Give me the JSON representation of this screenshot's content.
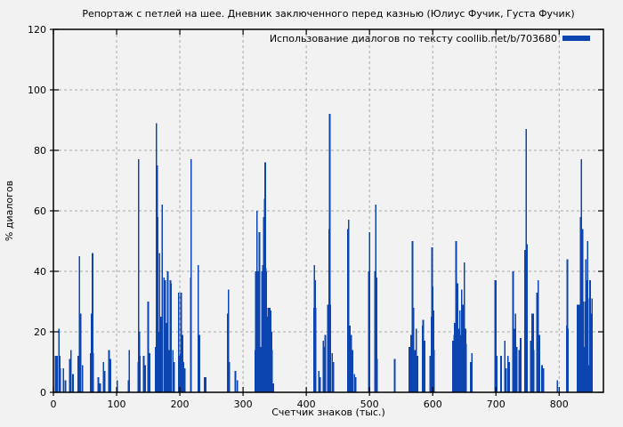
{
  "title": "Репортаж с петлей на шее. Дневник заключенного перед казнью (Юлиус Фучик, Густа Фучик)",
  "legend": {
    "label": "Использование диалогов по тексту coollib.net/b/703680",
    "swatch_color": "#0d45b0"
  },
  "colors": {
    "background": "#f2f2f2",
    "bar": "#0d45b0",
    "grid": "#a8a8a8",
    "axis": "#000000"
  },
  "chart_data": {
    "type": "bar",
    "title": "Репортаж с петлей на шее. Дневник заключенного перед казнью (Юлиус Фучик, Густа Фучик)",
    "xlabel": "Счетчик знаков (тыс.)",
    "ylabel": "% диалогов",
    "xlim": [
      0,
      870
    ],
    "ylim": [
      0,
      120
    ],
    "x_ticks": [
      0,
      100,
      200,
      300,
      400,
      500,
      600,
      700,
      800
    ],
    "y_ticks": [
      0,
      20,
      40,
      60,
      80,
      100,
      120
    ],
    "grid": true,
    "legend_position": "top-right-inside",
    "series": [
      {
        "name": "Использование диалогов по тексту coollib.net/b/703680",
        "color": "#0d45b0",
        "points": [
          [
            3,
            12
          ],
          [
            4,
            12
          ],
          [
            5,
            12
          ],
          [
            6,
            12
          ],
          [
            9,
            21
          ],
          [
            10,
            12
          ],
          [
            11,
            8
          ],
          [
            16,
            8
          ],
          [
            19,
            4
          ],
          [
            26,
            11
          ],
          [
            28,
            14
          ],
          [
            31,
            6
          ],
          [
            39,
            12
          ],
          [
            40,
            12
          ],
          [
            41,
            45
          ],
          [
            42,
            12
          ],
          [
            43,
            26
          ],
          [
            46,
            9
          ],
          [
            59,
            13
          ],
          [
            60,
            26
          ],
          [
            61,
            13
          ],
          [
            62,
            46
          ],
          [
            63,
            13
          ],
          [
            71,
            5
          ],
          [
            74,
            3
          ],
          [
            79,
            10
          ],
          [
            81,
            7
          ],
          [
            88,
            14
          ],
          [
            90,
            11
          ],
          [
            101,
            4
          ],
          [
            119,
            4
          ],
          [
            120,
            14
          ],
          [
            134,
            10
          ],
          [
            135,
            77
          ],
          [
            136,
            20
          ],
          [
            137,
            12
          ],
          [
            143,
            12
          ],
          [
            145,
            9
          ],
          [
            150,
            30
          ],
          [
            152,
            13
          ],
          [
            162,
            15
          ],
          [
            163,
            89
          ],
          [
            164,
            75
          ],
          [
            165,
            58
          ],
          [
            166,
            20
          ],
          [
            168,
            46
          ],
          [
            170,
            25
          ],
          [
            172,
            62
          ],
          [
            175,
            38
          ],
          [
            177,
            37
          ],
          [
            178,
            23
          ],
          [
            181,
            40
          ],
          [
            183,
            14
          ],
          [
            185,
            37
          ],
          [
            186,
            36
          ],
          [
            189,
            14
          ],
          [
            191,
            10
          ],
          [
            198,
            33
          ],
          [
            199,
            12
          ],
          [
            201,
            13
          ],
          [
            202,
            33
          ],
          [
            204,
            19
          ],
          [
            206,
            10
          ],
          [
            208,
            8
          ],
          [
            217,
            38
          ],
          [
            218,
            77
          ],
          [
            229,
            42
          ],
          [
            231,
            19
          ],
          [
            239,
            5
          ],
          [
            241,
            5
          ],
          [
            276,
            26
          ],
          [
            277,
            34
          ],
          [
            278,
            10
          ],
          [
            288,
            7
          ],
          [
            291,
            4
          ],
          [
            319,
            14
          ],
          [
            320,
            40
          ],
          [
            321,
            40
          ],
          [
            322,
            60
          ],
          [
            323,
            40
          ],
          [
            324,
            38
          ],
          [
            325,
            38
          ],
          [
            326,
            53
          ],
          [
            327,
            14
          ],
          [
            328,
            15
          ],
          [
            329,
            14
          ],
          [
            330,
            40
          ],
          [
            331,
            42
          ],
          [
            332,
            41
          ],
          [
            333,
            58
          ],
          [
            334,
            64
          ],
          [
            335,
            76
          ],
          [
            336,
            41
          ],
          [
            337,
            40
          ],
          [
            338,
            22
          ],
          [
            339,
            25
          ],
          [
            340,
            28
          ],
          [
            341,
            26
          ],
          [
            342,
            28
          ],
          [
            343,
            21
          ],
          [
            344,
            27
          ],
          [
            345,
            20
          ],
          [
            346,
            14
          ],
          [
            348,
            3
          ],
          [
            412,
            28
          ],
          [
            413,
            42
          ],
          [
            414,
            37
          ],
          [
            415,
            28
          ],
          [
            420,
            7
          ],
          [
            422,
            5
          ],
          [
            427,
            17
          ],
          [
            429,
            15
          ],
          [
            430,
            19
          ],
          [
            434,
            29
          ],
          [
            436,
            54
          ],
          [
            437,
            92
          ],
          [
            438,
            29
          ],
          [
            441,
            13
          ],
          [
            443,
            10
          ],
          [
            466,
            54
          ],
          [
            467,
            57
          ],
          [
            469,
            22
          ],
          [
            471,
            19
          ],
          [
            473,
            14
          ],
          [
            476,
            6
          ],
          [
            478,
            5
          ],
          [
            499,
            40
          ],
          [
            500,
            53
          ],
          [
            509,
            40
          ],
          [
            510,
            62
          ],
          [
            511,
            38
          ],
          [
            512,
            11
          ],
          [
            540,
            11
          ],
          [
            563,
            15
          ],
          [
            566,
            19
          ],
          [
            568,
            50
          ],
          [
            570,
            28
          ],
          [
            572,
            14
          ],
          [
            574,
            21
          ],
          [
            576,
            12
          ],
          [
            584,
            22
          ],
          [
            585,
            24
          ],
          [
            587,
            17
          ],
          [
            596,
            12
          ],
          [
            598,
            25
          ],
          [
            599,
            48
          ],
          [
            600,
            35
          ],
          [
            601,
            27
          ],
          [
            602,
            14
          ],
          [
            632,
            17
          ],
          [
            634,
            19
          ],
          [
            635,
            23
          ],
          [
            637,
            50
          ],
          [
            639,
            36
          ],
          [
            641,
            21
          ],
          [
            643,
            27
          ],
          [
            645,
            19
          ],
          [
            646,
            34
          ],
          [
            648,
            29
          ],
          [
            650,
            43
          ],
          [
            652,
            21
          ],
          [
            653,
            16
          ],
          [
            660,
            10
          ],
          [
            662,
            13
          ],
          [
            699,
            37
          ],
          [
            700,
            37
          ],
          [
            701,
            12
          ],
          [
            708,
            12
          ],
          [
            714,
            17
          ],
          [
            716,
            8
          ],
          [
            719,
            12
          ],
          [
            721,
            10
          ],
          [
            727,
            40
          ],
          [
            729,
            21
          ],
          [
            731,
            26
          ],
          [
            733,
            15
          ],
          [
            737,
            14
          ],
          [
            739,
            18
          ],
          [
            746,
            47
          ],
          [
            748,
            87
          ],
          [
            749,
            49
          ],
          [
            755,
            17
          ],
          [
            757,
            26
          ],
          [
            759,
            26
          ],
          [
            760,
            14
          ],
          [
            765,
            33
          ],
          [
            767,
            37
          ],
          [
            769,
            19
          ],
          [
            773,
            9
          ],
          [
            775,
            8
          ],
          [
            797,
            4
          ],
          [
            812,
            22
          ],
          [
            813,
            44
          ],
          [
            814,
            21
          ],
          [
            829,
            29
          ],
          [
            831,
            29
          ],
          [
            832,
            29
          ],
          [
            834,
            58
          ],
          [
            835,
            77
          ],
          [
            837,
            54
          ],
          [
            838,
            30
          ],
          [
            839,
            15
          ],
          [
            841,
            30
          ],
          [
            842,
            44
          ],
          [
            844,
            37
          ],
          [
            845,
            50
          ],
          [
            847,
            9
          ],
          [
            848,
            31
          ],
          [
            849,
            37
          ],
          [
            851,
            26
          ],
          [
            852,
            31
          ]
        ]
      }
    ]
  }
}
